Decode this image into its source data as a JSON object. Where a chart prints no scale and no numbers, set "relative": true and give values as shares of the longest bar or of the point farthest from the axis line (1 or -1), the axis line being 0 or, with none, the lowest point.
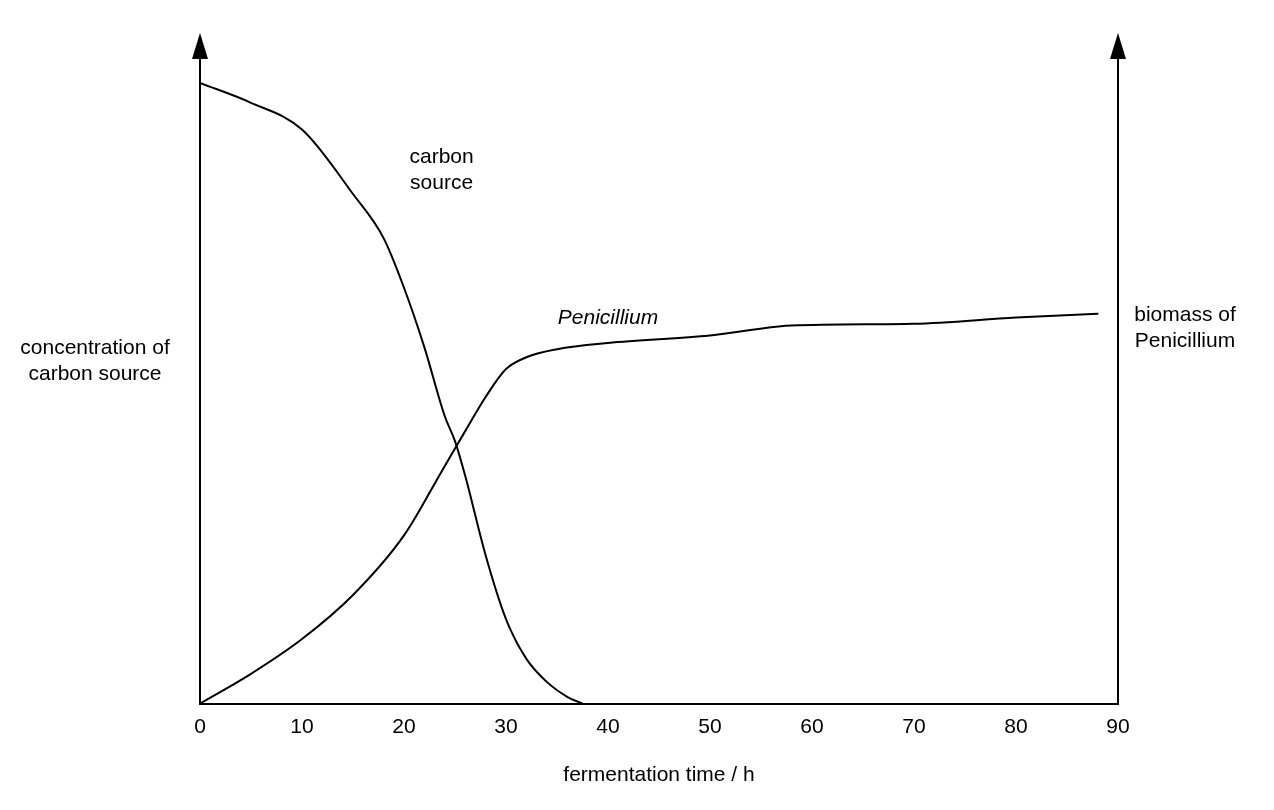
{
  "chart_data": {
    "type": "line",
    "relative": true,
    "xlabel": "fermentation time / h",
    "ylabel": "concentration of carbon source",
    "y2label": "biomass of Penicillium",
    "xlim": [
      0,
      90
    ],
    "xticks": [
      0,
      10,
      20,
      30,
      40,
      50,
      60,
      70,
      80,
      90
    ],
    "grid": false,
    "legend": false,
    "marker": "none",
    "line_style": "solid",
    "series": [
      {
        "name": "carbon source",
        "color": "#000000",
        "x": [
          0,
          5,
          10,
          15,
          18,
          20,
          22,
          24,
          25,
          26,
          28,
          30,
          32,
          34,
          36,
          37.5
        ],
        "values": [
          1.0,
          0.968,
          0.925,
          0.821,
          0.75,
          0.67,
          0.574,
          0.463,
          0.423,
          0.367,
          0.239,
          0.136,
          0.072,
          0.035,
          0.011,
          0
        ]
      },
      {
        "name": "Penicillium",
        "color": "#000000",
        "x": [
          0,
          5,
          10,
          15,
          20,
          24,
          26,
          28,
          30,
          32,
          35,
          40,
          50,
          58,
          70,
          80,
          88
        ],
        "values": [
          0,
          0.048,
          0.104,
          0.175,
          0.271,
          0.383,
          0.439,
          0.494,
          0.539,
          0.558,
          0.571,
          0.581,
          0.593,
          0.609,
          0.612,
          0.622,
          0.628
        ]
      }
    ]
  }
}
